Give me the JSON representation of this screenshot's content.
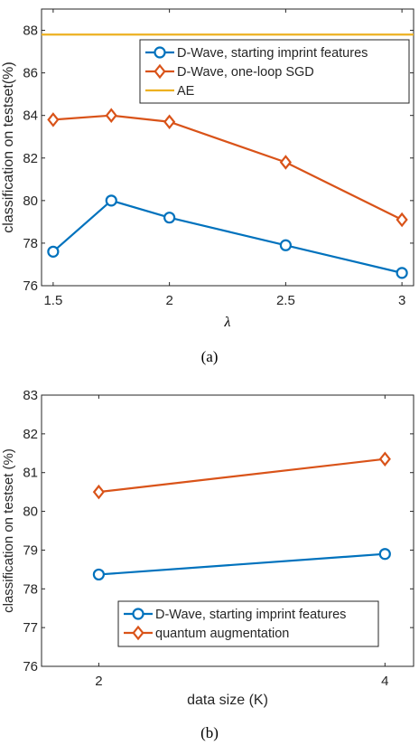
{
  "chart_data": [
    {
      "type": "line",
      "caption": "(a)",
      "xlabel": "λ",
      "ylabel": "classification on testset(%)",
      "xlim": [
        1.45,
        3.05
      ],
      "ylim": [
        76,
        89
      ],
      "xticks": [
        1.5,
        2,
        2.5,
        3
      ],
      "xtick_labels": [
        "1.5",
        "2",
        "2.5",
        "3"
      ],
      "yticks": [
        76,
        78,
        80,
        82,
        84,
        86,
        88
      ],
      "ytick_labels": [
        "76",
        "78",
        "80",
        "82",
        "84",
        "86",
        "88"
      ],
      "grid": false,
      "legend_position": "top-right",
      "series": [
        {
          "name": "D-Wave, starting imprint features",
          "color": "#0072BD",
          "marker": "circle",
          "x": [
            1.5,
            1.75,
            2,
            2.5,
            3
          ],
          "y": [
            77.6,
            80.0,
            79.2,
            77.9,
            76.6
          ]
        },
        {
          "name": "D-Wave, one-loop SGD",
          "color": "#D95319",
          "marker": "diamond",
          "x": [
            1.5,
            1.75,
            2,
            2.5,
            3
          ],
          "y": [
            83.8,
            84.0,
            83.7,
            81.8,
            79.1
          ]
        },
        {
          "name": "AE",
          "color": "#EDB120",
          "marker": "none",
          "x": [
            1.45,
            3.05
          ],
          "y": [
            87.8,
            87.8
          ]
        }
      ]
    },
    {
      "type": "line",
      "caption": "(b)",
      "xlabel": "data size (K)",
      "ylabel": "classification on testset (%)",
      "xlim": [
        1.6,
        4.2
      ],
      "ylim": [
        76,
        83
      ],
      "xticks": [
        2,
        4
      ],
      "xtick_labels": [
        "2",
        "4"
      ],
      "yticks": [
        76,
        77,
        78,
        79,
        80,
        81,
        82,
        83
      ],
      "ytick_labels": [
        "76",
        "77",
        "78",
        "79",
        "80",
        "81",
        "82",
        "83"
      ],
      "grid": false,
      "legend_position": "bottom-right",
      "series": [
        {
          "name": "D-Wave, starting imprint features",
          "color": "#0072BD",
          "marker": "circle",
          "x": [
            2,
            4
          ],
          "y": [
            78.37,
            78.9
          ]
        },
        {
          "name": "quantum augmentation",
          "color": "#D95319",
          "marker": "diamond",
          "x": [
            2,
            4
          ],
          "y": [
            80.5,
            81.35
          ]
        }
      ]
    }
  ]
}
